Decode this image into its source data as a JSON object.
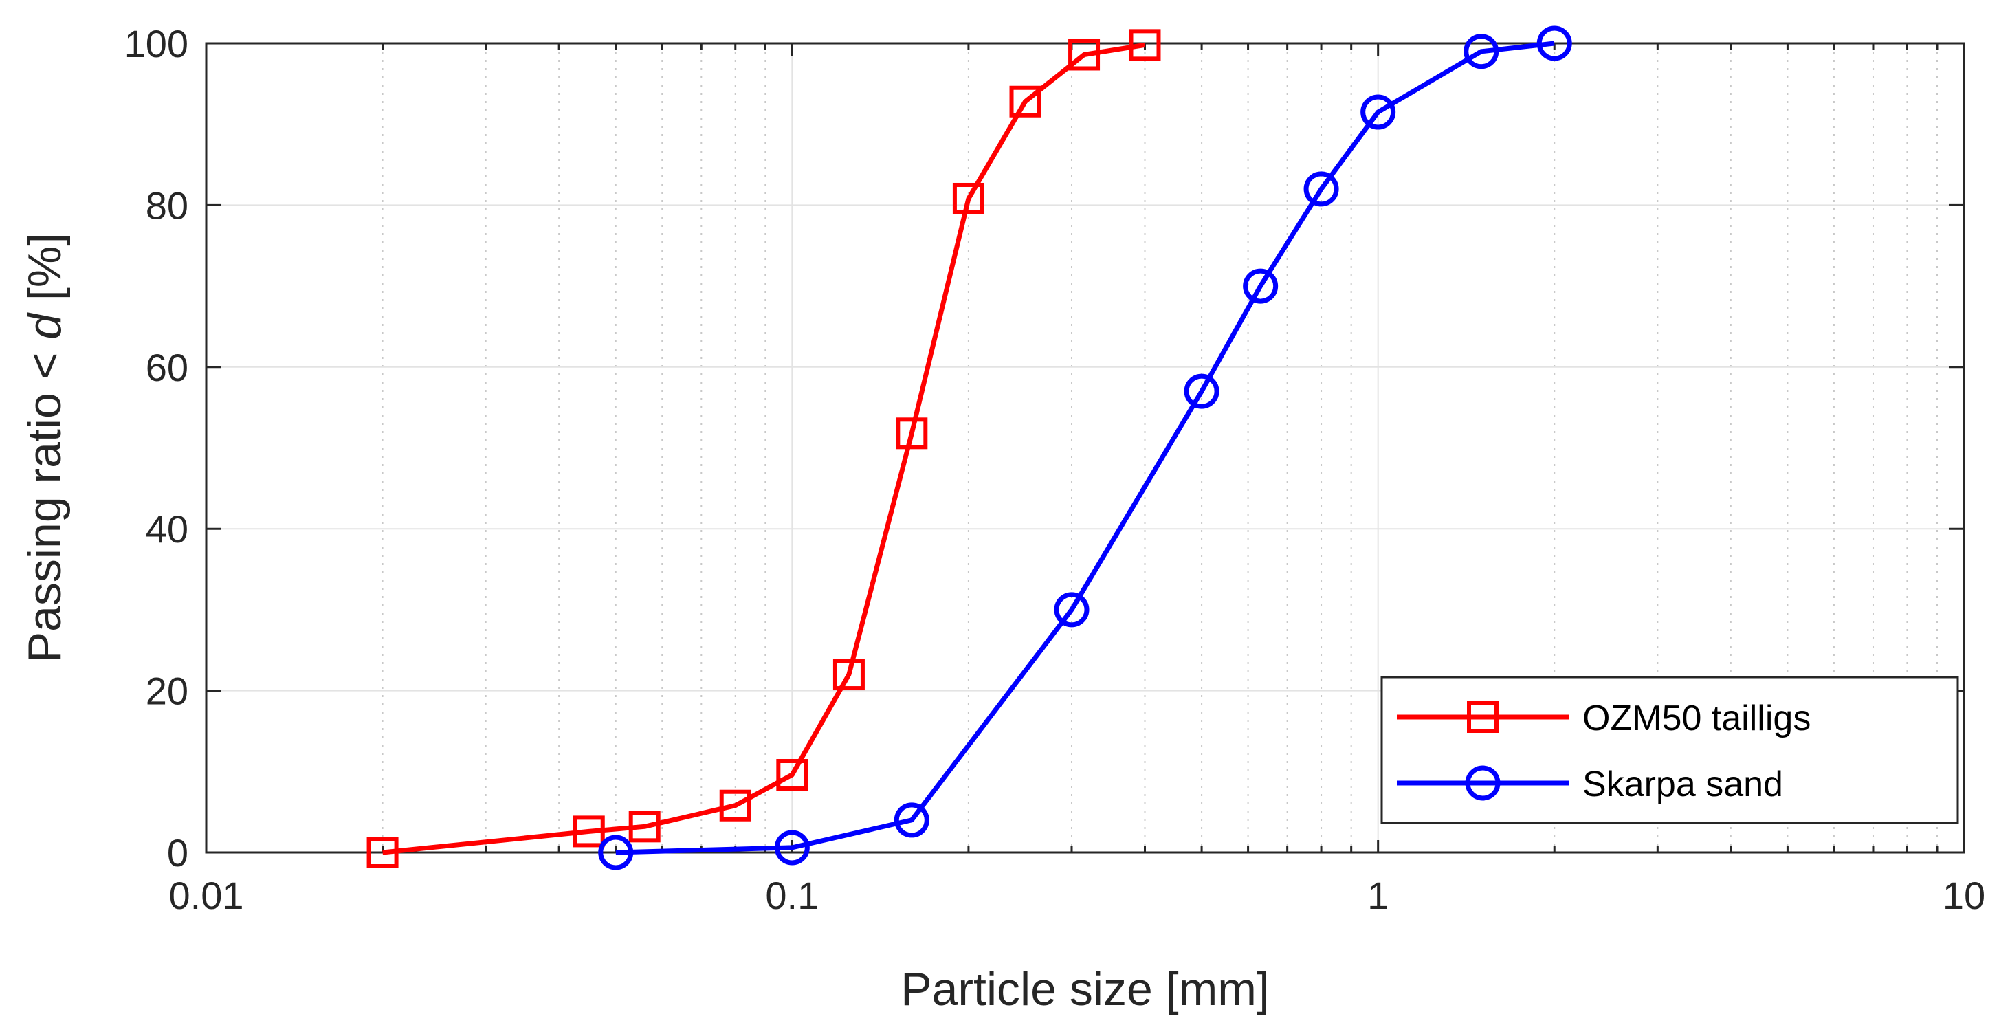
{
  "chart_data": {
    "type": "line",
    "title": "",
    "xlabel": "Particle size [mm]",
    "ylabel_prefix": "Passing ratio < ",
    "ylabel_var": "d",
    "ylabel_suffix": " [%]",
    "xscale": "log",
    "xlim": [
      0.01,
      10
    ],
    "ylim": [
      0,
      100
    ],
    "x_tick_labels": [
      "0.01",
      "0.1",
      "1",
      "10"
    ],
    "y_tick_labels": [
      "0",
      "20",
      "40",
      "60",
      "80",
      "100"
    ],
    "grid": true,
    "legend_position": "bottom-right",
    "series": [
      {
        "name": "OZM50 tailligs",
        "color": "#ff0000",
        "marker": "square",
        "x": [
          0.02,
          0.045,
          0.056,
          0.08,
          0.1,
          0.125,
          0.16,
          0.2,
          0.25,
          0.315,
          0.4
        ],
        "y": [
          0,
          2.6,
          3.2,
          5.8,
          9.6,
          22,
          51.8,
          80.8,
          92.8,
          98.6,
          99.8
        ]
      },
      {
        "name": "Skarpa sand",
        "color": "#0000ff",
        "marker": "circle",
        "x": [
          0.05,
          0.1,
          0.16,
          0.3,
          0.5,
          0.63,
          0.8,
          1.0,
          1.5,
          2.0
        ],
        "y": [
          0,
          0.6,
          4,
          30,
          57,
          70,
          82,
          91.5,
          99,
          100
        ]
      }
    ]
  }
}
